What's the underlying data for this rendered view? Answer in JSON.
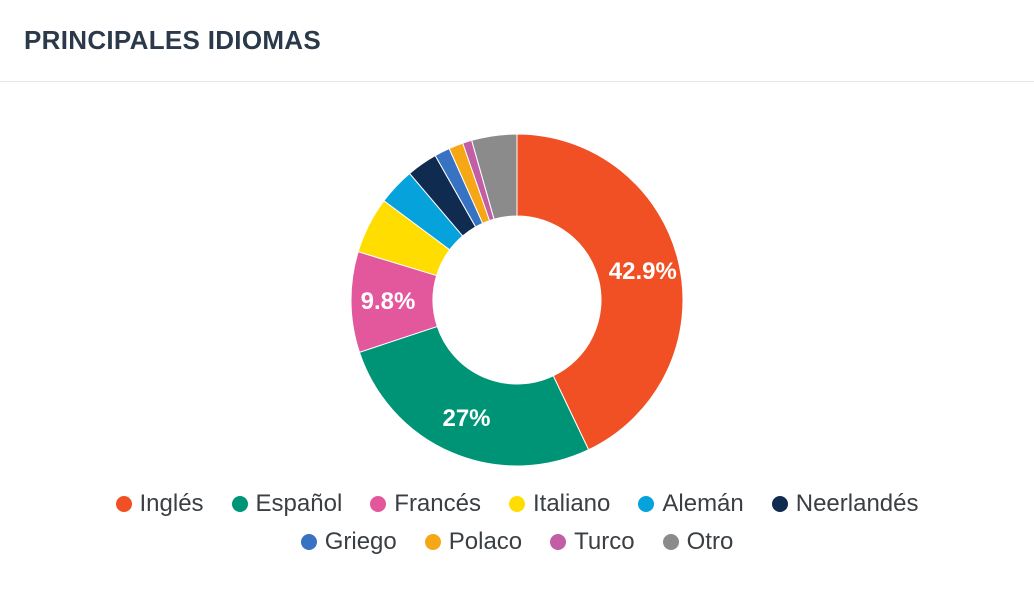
{
  "header": {
    "title": "PRINCIPALES IDIOMAS"
  },
  "chart_data": {
    "type": "pie",
    "donut": true,
    "title": "PRINCIPALES IDIOMAS",
    "legend_position": "bottom",
    "categories": [
      "Inglés",
      "Español",
      "Francés",
      "Italiano",
      "Alemán",
      "Neerlandés",
      "Griego",
      "Polaco",
      "Turco",
      "Otro"
    ],
    "values": [
      42.9,
      27.0,
      9.8,
      5.5,
      3.6,
      3.0,
      1.5,
      1.4,
      0.9,
      4.4
    ],
    "colors": [
      "#f05024",
      "#009477",
      "#e3579c",
      "#ffdd00",
      "#06a2db",
      "#102b50",
      "#3872c3",
      "#f6a715",
      "#c25ea6",
      "#8c8b8b"
    ],
    "data_labels": [
      "42.9%",
      "27%",
      "9.8%",
      "",
      "",
      "",
      "",
      "",
      "",
      ""
    ]
  },
  "legend_rows": [
    [
      0,
      1,
      2,
      3,
      4,
      5
    ],
    [
      6,
      7,
      8,
      9
    ]
  ]
}
